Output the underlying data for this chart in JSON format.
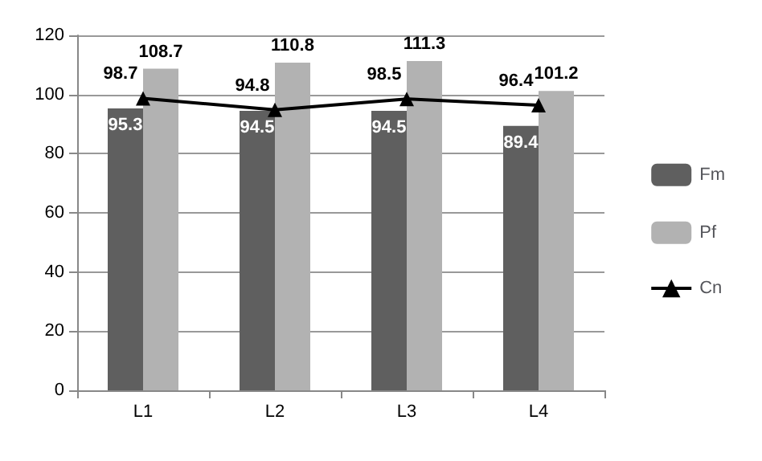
{
  "chart_data": {
    "type": "bar",
    "categories": [
      "L1",
      "L2",
      "L3",
      "L4"
    ],
    "series": [
      {
        "name": "Fm",
        "color": "#5f5f5f",
        "values": [
          95.3,
          94.5,
          94.5,
          89.4
        ]
      },
      {
        "name": "Pf",
        "color": "#b2b2b2",
        "values": [
          108.7,
          110.8,
          111.3,
          101.2
        ]
      },
      {
        "name": "Cn",
        "type": "line",
        "color": "#000000",
        "values": [
          98.7,
          94.8,
          98.5,
          96.4
        ],
        "marker": "triangle",
        "line_style": "solid"
      }
    ],
    "ylim": [
      0,
      120
    ],
    "yticks": [
      0,
      20,
      40,
      60,
      80,
      100,
      120
    ],
    "grid": "y",
    "legend": "right",
    "data_labels": true
  }
}
